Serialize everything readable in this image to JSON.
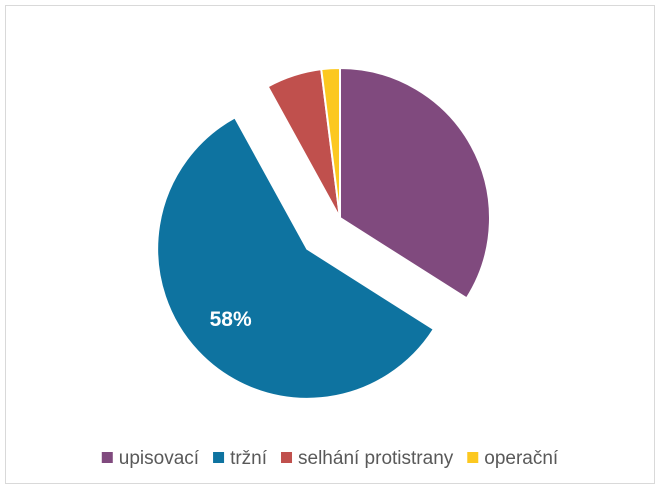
{
  "chart_data": {
    "type": "pie",
    "categories": [
      "upisovací",
      "tržní",
      "selhání protistrany",
      "operační"
    ],
    "values": [
      34,
      58,
      6,
      2
    ],
    "value_labels": [
      null,
      "58%",
      null,
      null
    ],
    "colors": [
      "#804a7e",
      "#0e73a0",
      "#c0504d",
      "#fcc820"
    ],
    "legend": "bottom"
  }
}
